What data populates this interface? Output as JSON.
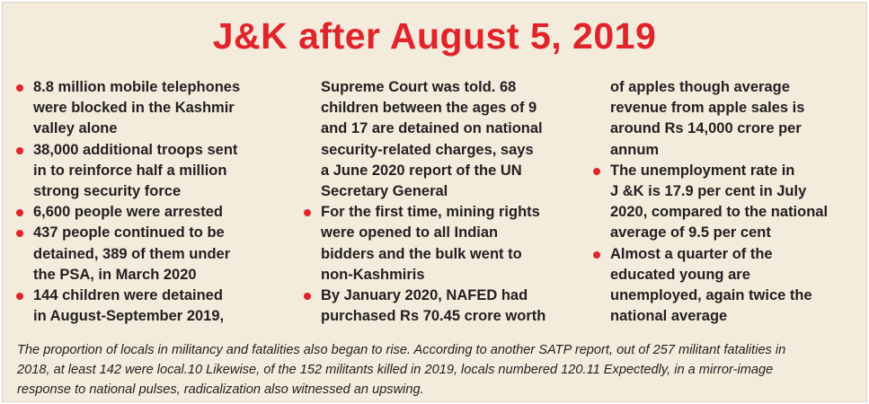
{
  "title": "J&K after August 5, 2019",
  "columns": [
    {
      "items": [
        {
          "bullet": true,
          "text": "8.8 million mobile telephones\nwere blocked in the Kashmir\nvalley alone"
        },
        {
          "bullet": true,
          "text": "38,000 additional troops sent\nin to reinforce half a million\nstrong security force"
        },
        {
          "bullet": true,
          "text": "6,600 people were arrested"
        },
        {
          "bullet": true,
          "text": "437 people continued to be\ndetained, 389 of them under\nthe PSA, in March 2020"
        },
        {
          "bullet": true,
          "text": "144 children were detained\nin August-September 2019,"
        }
      ]
    },
    {
      "items": [
        {
          "bullet": false,
          "text": "Supreme Court was told. 68\nchildren between the ages of 9\nand 17 are detained on national\nsecurity-related charges, says\na June 2020 report of the UN\nSecretary General"
        },
        {
          "bullet": true,
          "text": "For the first time, mining rights\nwere opened to all Indian\nbidders and the bulk went to\nnon-Kashmiris"
        },
        {
          "bullet": true,
          "text": "By January 2020, NAFED had\npurchased Rs 70.45 crore worth"
        }
      ]
    },
    {
      "items": [
        {
          "bullet": false,
          "text": "of apples though average\nrevenue from apple sales is\naround Rs 14,000 crore per\nannum"
        },
        {
          "bullet": true,
          "text": "The unemployment rate in\nJ &K is 17.9 per cent in July\n2020, compared to the national\naverage of 9.5 per cent"
        },
        {
          "bullet": true,
          "text": "Almost a quarter of the\neducated young are\nunemployed, again twice the\nnational average"
        }
      ]
    }
  ],
  "footer": "The proportion of locals in militancy and fatalities also began to rise. According to another SATP report, out of 257 militant fatalities in\n2018, at least 142 were local.10 Likewise, of the 152 militants killed in 2019, locals numbered 120.11 Expectedly, in a mirror-image\nresponse to national  pulses, radicalization also witnessed an upswing.",
  "colors": {
    "accent": "#e2232a",
    "background": "#f3ebdb"
  }
}
